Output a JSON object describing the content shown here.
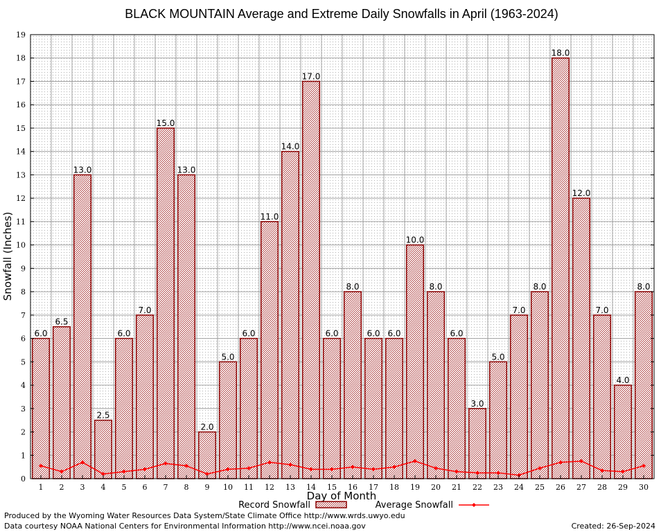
{
  "colors": {
    "bar_fill": "#a52a2a",
    "bar_stroke": "#8b0000",
    "line": "#ff0000",
    "grid": "#a0a0a0",
    "plot_bg": "#ffffff"
  },
  "chart_data": {
    "type": "bar",
    "title": "BLACK MOUNTAIN Average and Extreme Daily Snowfalls in April (1963-2024)",
    "xlabel": "Day of Month",
    "ylabel": "Snowfall (Inches)",
    "ylim": [
      0,
      19
    ],
    "yticks": [
      "0",
      "1",
      "2",
      "3",
      "4",
      "5",
      "6",
      "7",
      "8",
      "9",
      "10",
      "11",
      "12",
      "13",
      "14",
      "15",
      "16",
      "17",
      "18",
      "19"
    ],
    "categories": [
      "1",
      "2",
      "3",
      "4",
      "5",
      "6",
      "7",
      "8",
      "9",
      "10",
      "11",
      "12",
      "13",
      "14",
      "15",
      "16",
      "17",
      "18",
      "19",
      "20",
      "21",
      "22",
      "23",
      "24",
      "25",
      "26",
      "27",
      "28",
      "29",
      "30"
    ],
    "grid": true,
    "legend_position": "bottom",
    "series": [
      {
        "name": "Record Snowfall",
        "type": "bar",
        "values": [
          6.0,
          6.5,
          13.0,
          2.5,
          6.0,
          7.0,
          15.0,
          13.0,
          2.0,
          5.0,
          6.0,
          11.0,
          14.0,
          17.0,
          6.0,
          8.0,
          6.0,
          6.0,
          10.0,
          8.0,
          6.0,
          3.0,
          5.0,
          7.0,
          8.0,
          18.0,
          12.0,
          7.0,
          4.0,
          8.0
        ],
        "labels": [
          "6.0",
          "6.5",
          "13.0",
          "2.5",
          "6.0",
          "7.0",
          "15.0",
          "13.0",
          "2.0",
          "5.0",
          "6.0",
          "11.0",
          "14.0",
          "17.0",
          "6.0",
          "8.0",
          "6.0",
          "6.0",
          "10.0",
          "8.0",
          "6.0",
          "3.0",
          "5.0",
          "7.0",
          "8.0",
          "18.0",
          "12.0",
          "7.0",
          "4.0",
          "8.0"
        ]
      },
      {
        "name": "Average Snowfall",
        "type": "line",
        "values": [
          0.55,
          0.3,
          0.7,
          0.2,
          0.3,
          0.4,
          0.65,
          0.55,
          0.2,
          0.4,
          0.45,
          0.7,
          0.6,
          0.4,
          0.4,
          0.5,
          0.4,
          0.5,
          0.75,
          0.45,
          0.3,
          0.25,
          0.25,
          0.15,
          0.45,
          0.7,
          0.75,
          0.35,
          0.3,
          0.55
        ]
      }
    ]
  },
  "footer": {
    "produced_by": "Produced by the Wyoming Water Resources Data System/State Climate Office http://www.wrds.uwyo.edu",
    "data_courtesy": "Data courtesy NOAA National Centers for Environmental Information http://www.ncei.noaa.gov",
    "created": "Created:  26-Sep-2024"
  }
}
